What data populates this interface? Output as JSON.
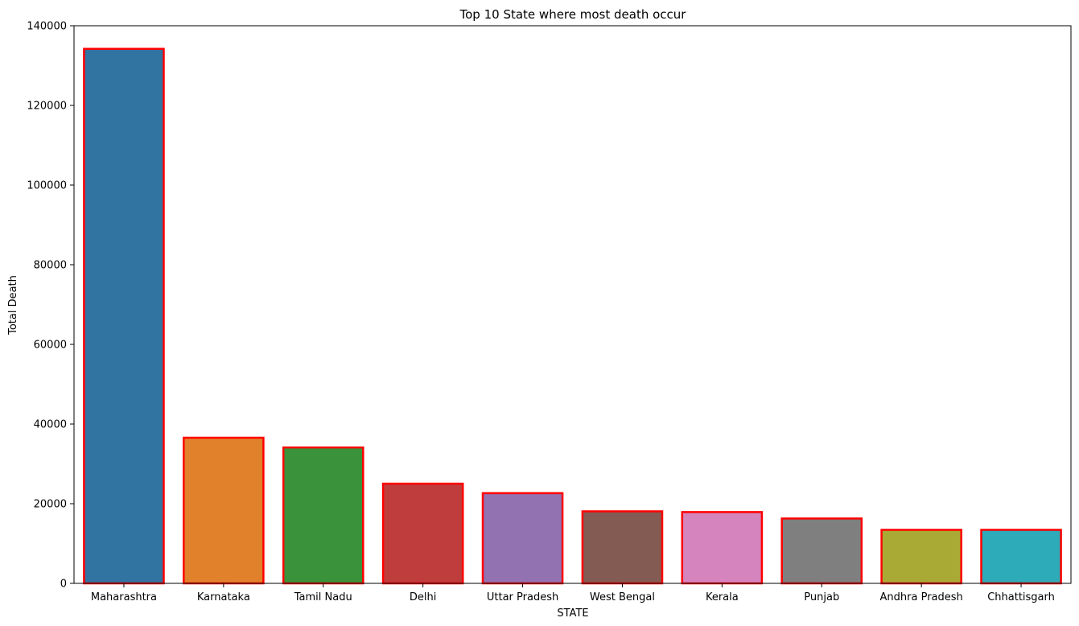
{
  "chart_data": {
    "type": "bar",
    "title": "Top 10 State where most death occur",
    "xlabel": "STATE",
    "ylabel": "Total Death",
    "ylim": [
      0,
      140000
    ],
    "yticks": [
      "0",
      "20000",
      "40000",
      "60000",
      "80000",
      "100000",
      "120000",
      "140000"
    ],
    "grid": false,
    "categories": [
      "Maharashtra",
      "Karnataka",
      "Tamil Nadu",
      "Delhi",
      "Uttar Pradesh",
      "West Bengal",
      "Kerala",
      "Punjab",
      "Andhra Pradesh",
      "Chhattisgarh"
    ],
    "values": [
      134201,
      36562,
      34120,
      25028,
      22656,
      18072,
      17901,
      16280,
      13432,
      13436
    ],
    "colors": [
      "#3274a1",
      "#e1812c",
      "#3a923a",
      "#c03d3e",
      "#9372b2",
      "#845b53",
      "#d684bd",
      "#7f7f7f",
      "#a9aa35",
      "#2eabb8"
    ],
    "edge_color": "#ff0000"
  }
}
